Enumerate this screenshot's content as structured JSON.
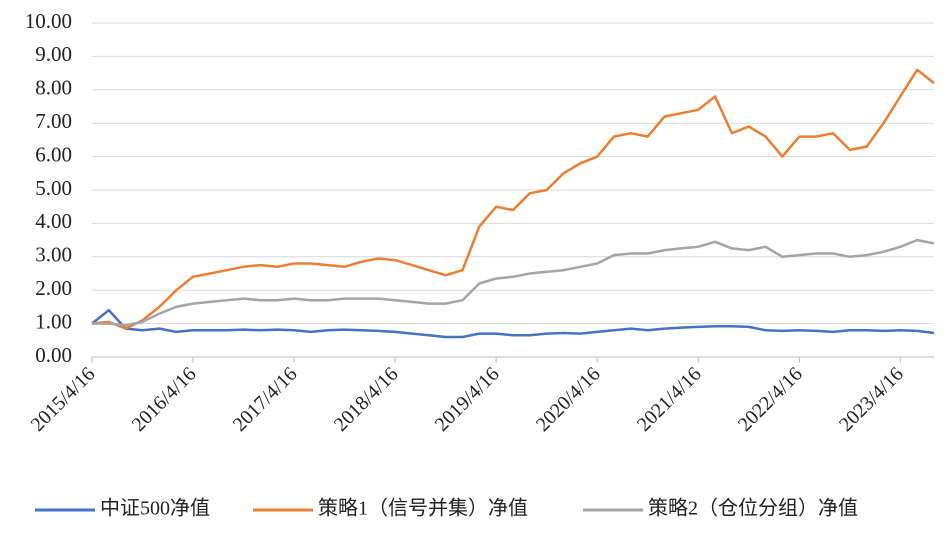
{
  "chart_data": {
    "type": "line",
    "categories": [
      "2015/4/16",
      null,
      null,
      null,
      null,
      null,
      "2016/4/16",
      null,
      null,
      null,
      null,
      null,
      "2017/4/16",
      null,
      null,
      null,
      null,
      null,
      "2018/4/16",
      null,
      null,
      null,
      null,
      null,
      "2019/4/16",
      null,
      null,
      null,
      null,
      null,
      "2020/4/16",
      null,
      null,
      null,
      null,
      null,
      "2021/4/16",
      null,
      null,
      null,
      null,
      null,
      "2022/4/16",
      null,
      null,
      null,
      null,
      null,
      "2023/4/16",
      null,
      null
    ],
    "series": [
      {
        "name": "中证500净值",
        "color": "#4472c4",
        "values": [
          1.0,
          1.4,
          0.85,
          0.8,
          0.85,
          0.75,
          0.8,
          0.8,
          0.8,
          0.82,
          0.8,
          0.82,
          0.8,
          0.75,
          0.8,
          0.82,
          0.8,
          0.78,
          0.75,
          0.7,
          0.65,
          0.6,
          0.6,
          0.7,
          0.7,
          0.65,
          0.65,
          0.7,
          0.72,
          0.7,
          0.75,
          0.8,
          0.85,
          0.8,
          0.85,
          0.88,
          0.9,
          0.92,
          0.92,
          0.9,
          0.8,
          0.78,
          0.8,
          0.78,
          0.75,
          0.8,
          0.8,
          0.78,
          0.8,
          0.78,
          0.72
        ]
      },
      {
        "name": "策略1（信号并集）净值",
        "color": "#ed7d31",
        "values": [
          1.0,
          1.05,
          0.85,
          1.1,
          1.5,
          2.0,
          2.4,
          2.5,
          2.6,
          2.7,
          2.75,
          2.7,
          2.8,
          2.8,
          2.75,
          2.7,
          2.85,
          2.95,
          2.9,
          2.75,
          2.6,
          2.45,
          2.6,
          3.9,
          4.5,
          4.4,
          4.9,
          5.0,
          5.5,
          5.8,
          6.0,
          6.6,
          6.7,
          6.6,
          7.2,
          7.3,
          7.4,
          7.8,
          6.7,
          6.9,
          6.6,
          6.0,
          6.6,
          6.6,
          6.7,
          6.2,
          6.3,
          7.0,
          7.8,
          8.6,
          8.2
        ]
      },
      {
        "name": "策略2（仓位分组）净值",
        "color": "#a5a5a5",
        "values": [
          1.0,
          1.0,
          0.95,
          1.05,
          1.3,
          1.5,
          1.6,
          1.65,
          1.7,
          1.75,
          1.7,
          1.7,
          1.75,
          1.7,
          1.7,
          1.75,
          1.75,
          1.75,
          1.7,
          1.65,
          1.6,
          1.6,
          1.7,
          2.2,
          2.35,
          2.4,
          2.5,
          2.55,
          2.6,
          2.7,
          2.8,
          3.05,
          3.1,
          3.1,
          3.2,
          3.25,
          3.3,
          3.45,
          3.25,
          3.2,
          3.3,
          3.0,
          3.05,
          3.1,
          3.1,
          3.0,
          3.05,
          3.15,
          3.3,
          3.5,
          3.4
        ]
      }
    ],
    "ylim": [
      0,
      10
    ],
    "yticks": [
      {
        "value": 0,
        "label": "0.00"
      },
      {
        "value": 1,
        "label": "1.00"
      },
      {
        "value": 2,
        "label": "2.00"
      },
      {
        "value": 3,
        "label": "3.00"
      },
      {
        "value": 4,
        "label": "4.00"
      },
      {
        "value": 5,
        "label": "5.00"
      },
      {
        "value": 6,
        "label": "6.00"
      },
      {
        "value": 7,
        "label": "7.00"
      },
      {
        "value": 8,
        "label": "8.00"
      },
      {
        "value": 9,
        "label": "9.00"
      },
      {
        "value": 10,
        "label": "10.00"
      }
    ],
    "grid": true,
    "legend": "bottom"
  }
}
